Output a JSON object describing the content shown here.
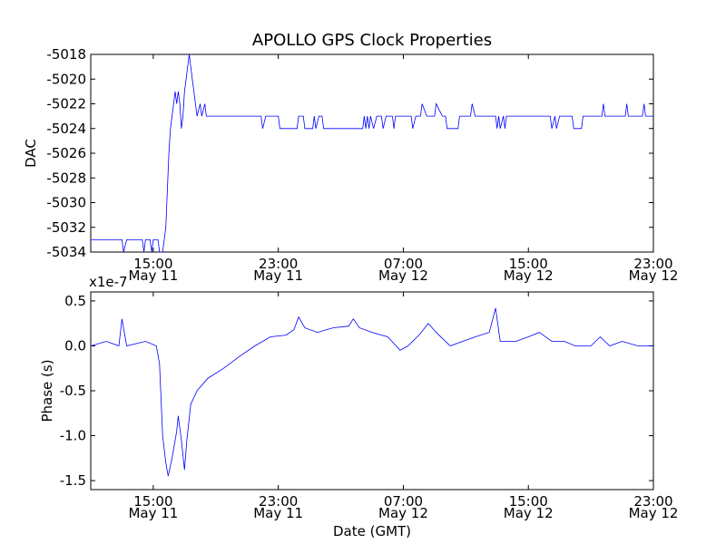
{
  "figure": {
    "title": "APOLLO GPS Clock Properties",
    "line_color": "#0000ff"
  },
  "chart_data": [
    {
      "type": "line",
      "title": "APOLLO GPS Clock Properties",
      "xlabel": "",
      "ylabel": "DAC",
      "x_unit": "hours since May 11 11:00 GMT",
      "xlim": [
        0,
        36
      ],
      "ylim": [
        -5034,
        -5018
      ],
      "yticks": [
        -5018,
        -5020,
        -5022,
        -5024,
        -5026,
        -5028,
        -5030,
        -5032,
        -5034
      ],
      "ytick_labels": [
        "-5018",
        "-5020",
        "-5022",
        "-5024",
        "-5026",
        "-5028",
        "-5030",
        "-5032",
        "-5034"
      ],
      "xticks": [
        4,
        12,
        20,
        28,
        36
      ],
      "xtick_labels": [
        [
          "15:00",
          "May 11"
        ],
        [
          "23:00",
          "May 11"
        ],
        [
          "07:00",
          "May 12"
        ],
        [
          "15:00",
          "May 12"
        ],
        [
          "23:00",
          "May 12"
        ]
      ],
      "grid": false,
      "series": [
        {
          "points": [
            [
              0,
              -5033
            ],
            [
              2,
              -5033
            ],
            [
              2.1,
              -5034
            ],
            [
              2.3,
              -5033
            ],
            [
              3.3,
              -5033
            ],
            [
              3.4,
              -5034
            ],
            [
              3.5,
              -5033
            ],
            [
              3.8,
              -5033
            ],
            [
              3.9,
              -5034
            ],
            [
              4.0,
              -5033
            ],
            [
              4.3,
              -5033
            ],
            [
              4.4,
              -5034
            ],
            [
              4.6,
              -5034
            ],
            [
              4.8,
              -5032
            ],
            [
              5.0,
              -5026
            ],
            [
              5.1,
              -5024
            ],
            [
              5.2,
              -5023
            ],
            [
              5.3,
              -5022
            ],
            [
              5.4,
              -5021
            ],
            [
              5.5,
              -5022
            ],
            [
              5.6,
              -5021
            ],
            [
              5.7,
              -5022
            ],
            [
              5.8,
              -5024
            ],
            [
              5.9,
              -5023
            ],
            [
              6.0,
              -5021
            ],
            [
              6.2,
              -5019
            ],
            [
              6.3,
              -5018
            ],
            [
              6.4,
              -5019
            ],
            [
              6.5,
              -5020
            ],
            [
              6.6,
              -5021
            ],
            [
              6.7,
              -5022
            ],
            [
              6.8,
              -5023
            ],
            [
              7.0,
              -5022
            ],
            [
              7.1,
              -5023
            ],
            [
              7.3,
              -5022
            ],
            [
              7.4,
              -5023
            ],
            [
              10.9,
              -5023
            ],
            [
              11.0,
              -5024
            ],
            [
              11.2,
              -5023
            ],
            [
              12.0,
              -5023
            ],
            [
              12.1,
              -5024
            ],
            [
              13.2,
              -5024
            ],
            [
              13.3,
              -5023
            ],
            [
              13.6,
              -5023
            ],
            [
              13.7,
              -5024
            ],
            [
              14.2,
              -5024
            ],
            [
              14.3,
              -5023
            ],
            [
              14.4,
              -5024
            ],
            [
              14.6,
              -5023
            ],
            [
              14.8,
              -5023
            ],
            [
              14.9,
              -5024
            ],
            [
              17.4,
              -5024
            ],
            [
              17.5,
              -5023
            ],
            [
              17.6,
              -5024
            ],
            [
              17.7,
              -5023
            ],
            [
              17.8,
              -5024
            ],
            [
              17.9,
              -5023
            ],
            [
              18.1,
              -5024
            ],
            [
              18.3,
              -5023
            ],
            [
              18.6,
              -5023
            ],
            [
              18.7,
              -5024
            ],
            [
              18.9,
              -5023
            ],
            [
              19.3,
              -5023
            ],
            [
              19.4,
              -5024
            ],
            [
              19.5,
              -5023
            ],
            [
              20.5,
              -5023
            ],
            [
              20.6,
              -5024
            ],
            [
              20.8,
              -5023
            ],
            [
              21.1,
              -5023
            ],
            [
              21.2,
              -5022
            ],
            [
              21.5,
              -5023
            ],
            [
              22.0,
              -5023
            ],
            [
              22.1,
              -5022
            ],
            [
              22.5,
              -5023
            ],
            [
              22.7,
              -5023
            ],
            [
              22.8,
              -5024
            ],
            [
              23.5,
              -5024
            ],
            [
              23.6,
              -5023
            ],
            [
              24.3,
              -5023
            ],
            [
              24.4,
              -5022
            ],
            [
              24.6,
              -5023
            ],
            [
              25.9,
              -5023
            ],
            [
              26.0,
              -5024
            ],
            [
              26.1,
              -5023
            ],
            [
              26.2,
              -5024
            ],
            [
              26.4,
              -5023
            ],
            [
              26.5,
              -5024
            ],
            [
              26.6,
              -5023
            ],
            [
              29.4,
              -5023
            ],
            [
              29.5,
              -5024
            ],
            [
              29.7,
              -5023
            ],
            [
              29.8,
              -5024
            ],
            [
              30.0,
              -5023
            ],
            [
              30.8,
              -5023
            ],
            [
              30.9,
              -5024
            ],
            [
              31.4,
              -5024
            ],
            [
              31.5,
              -5023
            ],
            [
              32.7,
              -5023
            ],
            [
              32.8,
              -5022
            ],
            [
              32.9,
              -5023
            ],
            [
              34.2,
              -5023
            ],
            [
              34.3,
              -5022
            ],
            [
              34.4,
              -5023
            ],
            [
              35.3,
              -5023
            ],
            [
              35.4,
              -5022
            ],
            [
              35.5,
              -5023
            ],
            [
              36,
              -5023
            ]
          ]
        }
      ]
    },
    {
      "type": "line",
      "title": "",
      "xlabel": "Date (GMT)",
      "ylabel": "Phase (s)",
      "y_multiplier_label": "x1e-7",
      "x_unit": "hours since May 11 11:00 GMT",
      "xlim": [
        0,
        36
      ],
      "ylim": [
        -1.6,
        0.6
      ],
      "yticks": [
        0.5,
        0.0,
        -0.5,
        -1.0,
        -1.5
      ],
      "ytick_labels": [
        "0.5",
        "0.0",
        "-0.5",
        "-1.0",
        "-1.5"
      ],
      "xticks": [
        4,
        12,
        20,
        28,
        36
      ],
      "xtick_labels": [
        [
          "15:00",
          "May 11"
        ],
        [
          "23:00",
          "May 11"
        ],
        [
          "07:00",
          "May 12"
        ],
        [
          "15:00",
          "May 12"
        ],
        [
          "23:00",
          "May 12"
        ]
      ],
      "grid": false,
      "series": [
        {
          "points": [
            [
              0,
              0.0
            ],
            [
              1.0,
              0.05
            ],
            [
              1.8,
              0.0
            ],
            [
              2.0,
              0.3
            ],
            [
              2.3,
              0.0
            ],
            [
              3.5,
              0.05
            ],
            [
              4.2,
              0.0
            ],
            [
              4.4,
              -0.2
            ],
            [
              4.5,
              -0.6
            ],
            [
              4.6,
              -1.0
            ],
            [
              4.8,
              -1.3
            ],
            [
              4.95,
              -1.45
            ],
            [
              5.2,
              -1.25
            ],
            [
              5.5,
              -0.95
            ],
            [
              5.6,
              -0.78
            ],
            [
              5.8,
              -1.05
            ],
            [
              6.0,
              -1.38
            ],
            [
              6.15,
              -1.05
            ],
            [
              6.4,
              -0.65
            ],
            [
              6.8,
              -0.5
            ],
            [
              7.5,
              -0.36
            ],
            [
              8.5,
              -0.25
            ],
            [
              9.5,
              -0.12
            ],
            [
              10.5,
              0.0
            ],
            [
              11.5,
              0.1
            ],
            [
              12.5,
              0.12
            ],
            [
              13.0,
              0.18
            ],
            [
              13.3,
              0.32
            ],
            [
              13.7,
              0.2
            ],
            [
              14.5,
              0.15
            ],
            [
              15.5,
              0.2
            ],
            [
              16.5,
              0.22
            ],
            [
              16.8,
              0.3
            ],
            [
              17.2,
              0.2
            ],
            [
              18.0,
              0.15
            ],
            [
              19.0,
              0.1
            ],
            [
              19.8,
              -0.05
            ],
            [
              20.3,
              0.0
            ],
            [
              21.0,
              0.12
            ],
            [
              21.6,
              0.25
            ],
            [
              22.1,
              0.15
            ],
            [
              23.0,
              0.0
            ],
            [
              23.8,
              0.05
            ],
            [
              24.6,
              0.1
            ],
            [
              25.5,
              0.15
            ],
            [
              25.9,
              0.42
            ],
            [
              26.2,
              0.05
            ],
            [
              27.2,
              0.05
            ],
            [
              28.0,
              0.1
            ],
            [
              28.7,
              0.15
            ],
            [
              29.5,
              0.05
            ],
            [
              30.3,
              0.05
            ],
            [
              31.0,
              0.0
            ],
            [
              32.0,
              0.0
            ],
            [
              32.6,
              0.1
            ],
            [
              33.2,
              0.0
            ],
            [
              34.0,
              0.05
            ],
            [
              35.0,
              0.0
            ],
            [
              36,
              0.0
            ]
          ]
        }
      ]
    }
  ]
}
